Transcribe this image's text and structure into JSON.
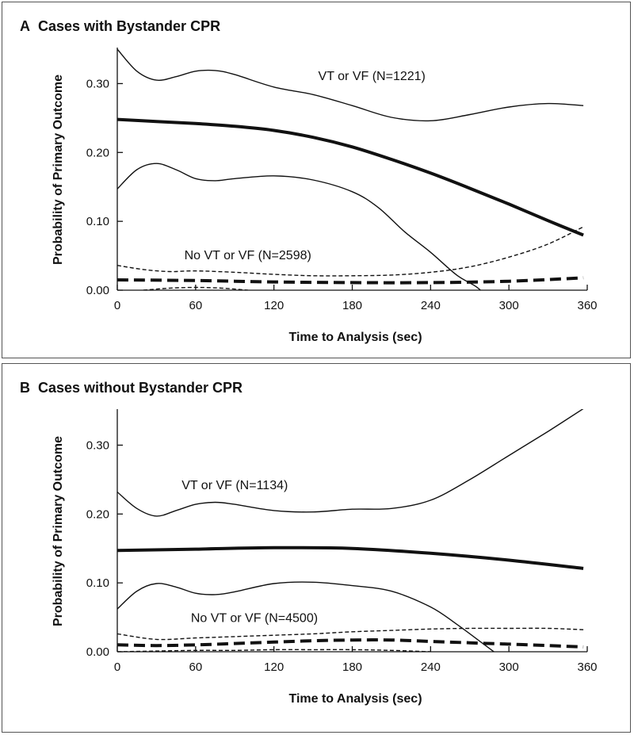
{
  "chart_data": [
    {
      "type": "line",
      "panel_letter": "A",
      "title": "Cases with Bystander CPR",
      "xlabel": "Time to Analysis (sec)",
      "ylabel": "Probability of Primary Outcome",
      "xlim": [
        0,
        360
      ],
      "ylim": [
        0,
        0.35
      ],
      "x_ticks": [
        0,
        60,
        120,
        180,
        240,
        300,
        360
      ],
      "y_ticks": [
        0.0,
        0.1,
        0.2,
        0.3
      ],
      "y_tick_labels": [
        "0.00",
        "0.10",
        "0.20",
        "0.30"
      ],
      "grid": false,
      "annotations": [
        {
          "text": "VT or VF (N=1221)",
          "x": 195,
          "y": 0.305
        },
        {
          "text": "No VT or VF (N=2598)",
          "x": 100,
          "y": 0.045
        }
      ],
      "series": [
        {
          "role": "vt-vf-estimate",
          "style": "solid-thick",
          "x": [
            0,
            30,
            60,
            90,
            120,
            150,
            180,
            210,
            240,
            270,
            300,
            330,
            357
          ],
          "y": [
            0.248,
            0.245,
            0.242,
            0.238,
            0.232,
            0.222,
            0.208,
            0.19,
            0.17,
            0.148,
            0.125,
            0.101,
            0.08
          ]
        },
        {
          "role": "vt-vf-upper-ci",
          "style": "solid-thin",
          "x": [
            0,
            15,
            30,
            45,
            60,
            75,
            90,
            120,
            150,
            180,
            210,
            240,
            270,
            300,
            330,
            357
          ],
          "y": [
            0.35,
            0.318,
            0.305,
            0.31,
            0.318,
            0.319,
            0.313,
            0.295,
            0.284,
            0.268,
            0.251,
            0.246,
            0.255,
            0.266,
            0.271,
            0.268
          ]
        },
        {
          "role": "vt-vf-lower-ci",
          "style": "solid-thin",
          "x": [
            0,
            15,
            30,
            45,
            60,
            75,
            90,
            120,
            150,
            180,
            200,
            220,
            240,
            260,
            275,
            285
          ],
          "y": [
            0.147,
            0.175,
            0.184,
            0.175,
            0.162,
            0.159,
            0.162,
            0.166,
            0.16,
            0.143,
            0.12,
            0.085,
            0.055,
            0.022,
            0.005,
            -0.012
          ]
        },
        {
          "role": "no-vt-vf-estimate",
          "style": "dashed-thick",
          "x": [
            0,
            60,
            120,
            180,
            240,
            300,
            357
          ],
          "y": [
            0.015,
            0.014,
            0.012,
            0.011,
            0.011,
            0.013,
            0.018
          ]
        },
        {
          "role": "no-vt-vf-upper-ci",
          "style": "dashed-thin",
          "x": [
            0,
            20,
            40,
            60,
            90,
            120,
            150,
            180,
            210,
            240,
            270,
            300,
            330,
            357
          ],
          "y": [
            0.036,
            0.03,
            0.027,
            0.028,
            0.026,
            0.023,
            0.021,
            0.021,
            0.022,
            0.026,
            0.034,
            0.048,
            0.067,
            0.092
          ]
        },
        {
          "role": "no-vt-vf-lower-ci",
          "style": "dashed-thin",
          "x": [
            20,
            40,
            60,
            80,
            100
          ],
          "y": [
            0.0,
            0.003,
            0.004,
            0.003,
            0.0
          ]
        }
      ]
    },
    {
      "type": "line",
      "panel_letter": "B",
      "title": "Cases without Bystander CPR",
      "xlabel": "Time to Analysis (sec)",
      "ylabel": "Probability of Primary Outcome",
      "xlim": [
        0,
        360
      ],
      "ylim": [
        0,
        0.35
      ],
      "x_ticks": [
        0,
        60,
        120,
        180,
        240,
        300,
        360
      ],
      "y_ticks": [
        0.0,
        0.1,
        0.2,
        0.3
      ],
      "y_tick_labels": [
        "0.00",
        "0.10",
        "0.20",
        "0.30"
      ],
      "grid": false,
      "annotations": [
        {
          "text": "VT or VF (N=1134)",
          "x": 90,
          "y": 0.236
        },
        {
          "text": "No VT or VF (N=4500)",
          "x": 105,
          "y": 0.043
        }
      ],
      "series": [
        {
          "role": "vt-vf-estimate",
          "style": "solid-thick",
          "x": [
            0,
            60,
            120,
            180,
            240,
            300,
            357
          ],
          "y": [
            0.147,
            0.149,
            0.151,
            0.15,
            0.143,
            0.133,
            0.121
          ]
        },
        {
          "role": "vt-vf-upper-ci",
          "style": "solid-thin",
          "x": [
            0,
            15,
            30,
            45,
            60,
            75,
            90,
            120,
            150,
            180,
            210,
            240,
            270,
            300,
            330,
            357
          ],
          "y": [
            0.232,
            0.208,
            0.197,
            0.205,
            0.214,
            0.217,
            0.214,
            0.205,
            0.203,
            0.207,
            0.208,
            0.22,
            0.25,
            0.285,
            0.32,
            0.353
          ]
        },
        {
          "role": "vt-vf-lower-ci",
          "style": "solid-thin",
          "x": [
            0,
            15,
            30,
            45,
            60,
            75,
            90,
            120,
            150,
            180,
            210,
            240,
            260,
            280,
            292
          ],
          "y": [
            0.062,
            0.088,
            0.099,
            0.094,
            0.085,
            0.083,
            0.087,
            0.099,
            0.101,
            0.096,
            0.088,
            0.065,
            0.04,
            0.012,
            -0.005
          ]
        },
        {
          "role": "no-vt-vf-estimate",
          "style": "dashed-thick",
          "x": [
            0,
            30,
            60,
            90,
            120,
            150,
            180,
            210,
            240,
            270,
            300,
            330,
            357
          ],
          "y": [
            0.01,
            0.009,
            0.01,
            0.012,
            0.014,
            0.016,
            0.017,
            0.017,
            0.015,
            0.013,
            0.011,
            0.009,
            0.007
          ]
        },
        {
          "role": "no-vt-vf-upper-ci",
          "style": "dashed-thin",
          "x": [
            0,
            30,
            60,
            90,
            120,
            150,
            180,
            210,
            240,
            270,
            300,
            330,
            357
          ],
          "y": [
            0.026,
            0.018,
            0.02,
            0.022,
            0.024,
            0.026,
            0.029,
            0.031,
            0.033,
            0.034,
            0.034,
            0.034,
            0.032
          ]
        },
        {
          "role": "no-vt-vf-lower-ci",
          "style": "dashed-thin",
          "x": [
            0,
            30,
            60,
            90,
            120,
            150,
            180,
            210,
            240
          ],
          "y": [
            0.0,
            0.001,
            0.002,
            0.002,
            0.003,
            0.003,
            0.003,
            0.002,
            0.0
          ]
        }
      ]
    }
  ]
}
